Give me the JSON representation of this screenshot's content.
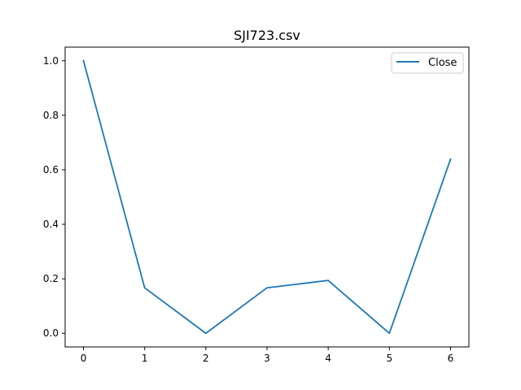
{
  "chart_data": {
    "type": "line",
    "title": "SJI723.csv",
    "xlabel": "",
    "ylabel": "",
    "x": [
      0,
      1,
      2,
      3,
      4,
      5,
      6
    ],
    "series": [
      {
        "name": "Close",
        "color": "#1f77b4",
        "values": [
          1.0,
          0.167,
          0.0,
          0.167,
          0.194,
          0.0,
          0.639
        ]
      }
    ],
    "xlim": [
      -0.3,
      6.3
    ],
    "ylim": [
      -0.05,
      1.05
    ],
    "xticks": [
      0,
      1,
      2,
      3,
      4,
      5,
      6
    ],
    "xtick_labels": [
      "0",
      "1",
      "2",
      "3",
      "4",
      "5",
      "6"
    ],
    "yticks": [
      0.0,
      0.2,
      0.4,
      0.6,
      0.8,
      1.0
    ],
    "ytick_labels": [
      "0.0",
      "0.2",
      "0.4",
      "0.6",
      "0.8",
      "1.0"
    ],
    "grid": false,
    "legend_position": "top-right"
  }
}
